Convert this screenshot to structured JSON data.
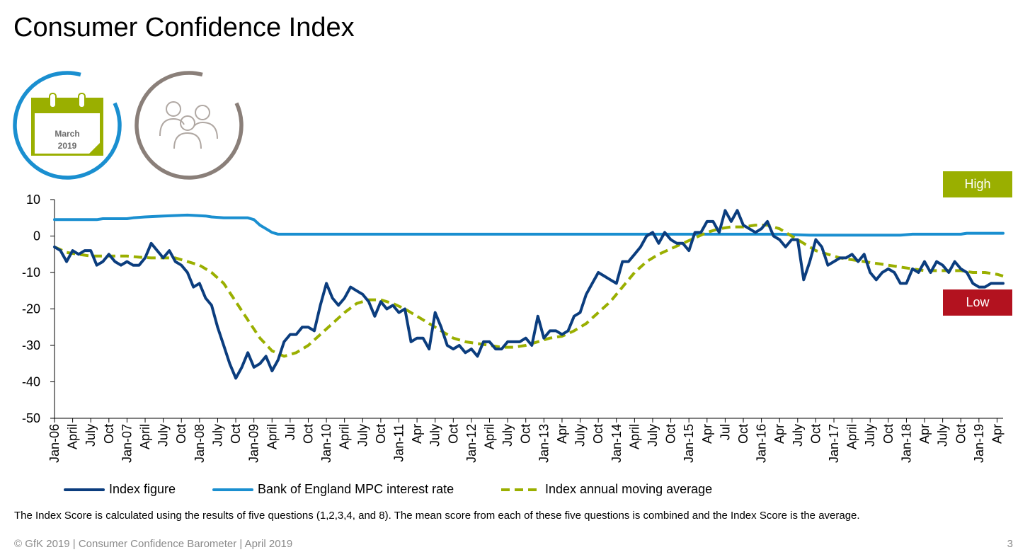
{
  "title": "Consumer Confidence Index",
  "calendar": {
    "month": "March",
    "year": "2019"
  },
  "badges": {
    "high": "High",
    "low": "Low"
  },
  "colors": {
    "index": "#0b3d7e",
    "rate": "#1a8fd0",
    "moving_avg": "#9aaf00",
    "calendar_ring": "#1a8fd0",
    "people_ring": "#8a7f79",
    "high": "#9aaf00",
    "low": "#b3121f"
  },
  "icons": {
    "calendar": "calendar-icon",
    "people": "people-group-icon"
  },
  "note": "The Index Score is calculated using the results of five questions (1,2,3,4, and 8). The mean score from each of these five questions is combined and the Index Score is the average.",
  "footer": "© GfK 2019 | Consumer Confidence Barometer | April 2019",
  "page_number": "3",
  "chart_data": {
    "type": "line",
    "title": "",
    "xlabel": "",
    "ylabel": "",
    "ylim": [
      -50,
      10
    ],
    "yticks": [
      10,
      0,
      -10,
      -20,
      -30,
      -40,
      -50
    ],
    "x_labels": [
      {
        "i": 0,
        "label": "Jan-06"
      },
      {
        "i": 3,
        "label": "April"
      },
      {
        "i": 6,
        "label": "July"
      },
      {
        "i": 9,
        "label": "Oct"
      },
      {
        "i": 12,
        "label": "Jan-07"
      },
      {
        "i": 15,
        "label": "April"
      },
      {
        "i": 18,
        "label": "July"
      },
      {
        "i": 21,
        "label": "Oct"
      },
      {
        "i": 24,
        "label": "Jan-08"
      },
      {
        "i": 27,
        "label": "July"
      },
      {
        "i": 30,
        "label": "Oct"
      },
      {
        "i": 33,
        "label": "Jan-09"
      },
      {
        "i": 36,
        "label": "April"
      },
      {
        "i": 39,
        "label": "Jul"
      },
      {
        "i": 42,
        "label": "Oct"
      },
      {
        "i": 45,
        "label": "Jan-10"
      },
      {
        "i": 48,
        "label": "April"
      },
      {
        "i": 51,
        "label": "July"
      },
      {
        "i": 54,
        "label": "Oct"
      },
      {
        "i": 57,
        "label": "Jan-11"
      },
      {
        "i": 60,
        "label": "Apr"
      },
      {
        "i": 63,
        "label": "July"
      },
      {
        "i": 66,
        "label": "Oct"
      },
      {
        "i": 69,
        "label": "Jan-12"
      },
      {
        "i": 72,
        "label": "April"
      },
      {
        "i": 75,
        "label": "July"
      },
      {
        "i": 78,
        "label": "Oct"
      },
      {
        "i": 81,
        "label": "Jan-13"
      },
      {
        "i": 84,
        "label": "Apr"
      },
      {
        "i": 87,
        "label": "July"
      },
      {
        "i": 90,
        "label": "Oct"
      },
      {
        "i": 93,
        "label": "Jan-14"
      },
      {
        "i": 96,
        "label": "April"
      },
      {
        "i": 99,
        "label": "July"
      },
      {
        "i": 102,
        "label": "Oct"
      },
      {
        "i": 105,
        "label": "Jan-15"
      },
      {
        "i": 108,
        "label": "Apr"
      },
      {
        "i": 111,
        "label": "Jul"
      },
      {
        "i": 114,
        "label": "Oct"
      },
      {
        "i": 117,
        "label": "Jan-16"
      },
      {
        "i": 120,
        "label": "Apr"
      },
      {
        "i": 123,
        "label": "July"
      },
      {
        "i": 126,
        "label": "Oct"
      },
      {
        "i": 129,
        "label": "Jan-17"
      },
      {
        "i": 132,
        "label": "April"
      },
      {
        "i": 135,
        "label": "July"
      },
      {
        "i": 138,
        "label": "Oct"
      },
      {
        "i": 141,
        "label": "Jan-18"
      },
      {
        "i": 144,
        "label": "Apr"
      },
      {
        "i": 147,
        "label": "July"
      },
      {
        "i": 150,
        "label": "Oct"
      },
      {
        "i": 153,
        "label": "Jan-19"
      },
      {
        "i": 156,
        "label": "Apr"
      }
    ],
    "series": [
      {
        "name": "Index figure",
        "style": "solid",
        "points": [
          [
            0,
            -3
          ],
          [
            1,
            -4
          ],
          [
            2,
            -7
          ],
          [
            3,
            -4
          ],
          [
            4,
            -5
          ],
          [
            5,
            -4
          ],
          [
            6,
            -4
          ],
          [
            7,
            -8
          ],
          [
            8,
            -7
          ],
          [
            9,
            -5
          ],
          [
            10,
            -7
          ],
          [
            11,
            -8
          ],
          [
            12,
            -7
          ],
          [
            13,
            -8
          ],
          [
            14,
            -8
          ],
          [
            15,
            -6
          ],
          [
            16,
            -2
          ],
          [
            17,
            -4
          ],
          [
            18,
            -6
          ],
          [
            19,
            -4
          ],
          [
            20,
            -7
          ],
          [
            21,
            -8
          ],
          [
            22,
            -10
          ],
          [
            23,
            -14
          ],
          [
            24,
            -13
          ],
          [
            25,
            -17
          ],
          [
            26,
            -19
          ],
          [
            27,
            -25
          ],
          [
            28,
            -30
          ],
          [
            29,
            -35
          ],
          [
            30,
            -39
          ],
          [
            31,
            -36
          ],
          [
            32,
            -32
          ],
          [
            33,
            -36
          ],
          [
            34,
            -35
          ],
          [
            35,
            -33
          ],
          [
            36,
            -37
          ],
          [
            37,
            -34
          ],
          [
            38,
            -29
          ],
          [
            39,
            -27
          ],
          [
            40,
            -27
          ],
          [
            41,
            -25
          ],
          [
            42,
            -25
          ],
          [
            43,
            -26
          ],
          [
            44,
            -19
          ],
          [
            45,
            -13
          ],
          [
            46,
            -17
          ],
          [
            47,
            -19
          ],
          [
            48,
            -17
          ],
          [
            49,
            -14
          ],
          [
            50,
            -15
          ],
          [
            51,
            -16
          ],
          [
            52,
            -18
          ],
          [
            53,
            -22
          ],
          [
            54,
            -18
          ],
          [
            55,
            -20
          ],
          [
            56,
            -19
          ],
          [
            57,
            -21
          ],
          [
            58,
            -20
          ],
          [
            59,
            -29
          ],
          [
            60,
            -28
          ],
          [
            61,
            -28
          ],
          [
            62,
            -31
          ],
          [
            63,
            -21
          ],
          [
            64,
            -25
          ],
          [
            65,
            -30
          ],
          [
            66,
            -31
          ],
          [
            67,
            -30
          ],
          [
            68,
            -32
          ],
          [
            69,
            -31
          ],
          [
            70,
            -33
          ],
          [
            71,
            -29
          ],
          [
            72,
            -29
          ],
          [
            73,
            -31
          ],
          [
            74,
            -31
          ],
          [
            75,
            -29
          ],
          [
            76,
            -29
          ],
          [
            77,
            -29
          ],
          [
            78,
            -28
          ],
          [
            79,
            -30
          ],
          [
            80,
            -22
          ],
          [
            81,
            -28
          ],
          [
            82,
            -26
          ],
          [
            83,
            -26
          ],
          [
            84,
            -27
          ],
          [
            85,
            -26
          ],
          [
            86,
            -22
          ],
          [
            87,
            -21
          ],
          [
            88,
            -16
          ],
          [
            89,
            -13
          ],
          [
            90,
            -10
          ],
          [
            91,
            -11
          ],
          [
            92,
            -12
          ],
          [
            93,
            -13
          ],
          [
            94,
            -7
          ],
          [
            95,
            -7
          ],
          [
            96,
            -5
          ],
          [
            97,
            -3
          ],
          [
            98,
            0
          ],
          [
            99,
            1
          ],
          [
            100,
            -2
          ],
          [
            101,
            1
          ],
          [
            102,
            -1
          ],
          [
            103,
            -2
          ],
          [
            104,
            -2
          ],
          [
            105,
            -4
          ],
          [
            106,
            1
          ],
          [
            107,
            1
          ],
          [
            108,
            4
          ],
          [
            109,
            4
          ],
          [
            110,
            1
          ],
          [
            111,
            7
          ],
          [
            112,
            4
          ],
          [
            113,
            7
          ],
          [
            114,
            3
          ],
          [
            115,
            2
          ],
          [
            116,
            1
          ],
          [
            117,
            2
          ],
          [
            118,
            4
          ],
          [
            119,
            0
          ],
          [
            120,
            -1
          ],
          [
            121,
            -3
          ],
          [
            122,
            -1
          ],
          [
            123,
            -1
          ],
          [
            124,
            -12
          ],
          [
            125,
            -7
          ],
          [
            126,
            -1
          ],
          [
            127,
            -3
          ],
          [
            128,
            -8
          ],
          [
            129,
            -7
          ],
          [
            130,
            -6
          ],
          [
            131,
            -6
          ],
          [
            132,
            -5
          ],
          [
            133,
            -7
          ],
          [
            134,
            -5
          ],
          [
            135,
            -10
          ],
          [
            136,
            -12
          ],
          [
            137,
            -10
          ],
          [
            138,
            -9
          ],
          [
            139,
            -10
          ],
          [
            140,
            -13
          ],
          [
            141,
            -13
          ],
          [
            142,
            -9
          ],
          [
            143,
            -10
          ],
          [
            144,
            -7
          ],
          [
            145,
            -10
          ],
          [
            146,
            -7
          ],
          [
            147,
            -8
          ],
          [
            148,
            -10
          ],
          [
            149,
            -7
          ],
          [
            150,
            -9
          ],
          [
            151,
            -10
          ],
          [
            152,
            -13
          ],
          [
            153,
            -14
          ],
          [
            154,
            -14
          ],
          [
            155,
            -13
          ],
          [
            156,
            -13
          ],
          [
            157,
            -13
          ]
        ]
      },
      {
        "name": "Bank of England MPC interest rate",
        "style": "solid",
        "points": [
          [
            0,
            4.5
          ],
          [
            7,
            4.5
          ],
          [
            8,
            4.75
          ],
          [
            12,
            4.75
          ],
          [
            13,
            5.0
          ],
          [
            15,
            5.25
          ],
          [
            18,
            5.5
          ],
          [
            22,
            5.75
          ],
          [
            25,
            5.5
          ],
          [
            26,
            5.25
          ],
          [
            28,
            5.0
          ],
          [
            31,
            5.0
          ],
          [
            32,
            5.0
          ],
          [
            33,
            4.5
          ],
          [
            34,
            3.0
          ],
          [
            35,
            2.0
          ],
          [
            36,
            1.0
          ],
          [
            37,
            0.5
          ],
          [
            38,
            0.5
          ],
          [
            120,
            0.5
          ],
          [
            125,
            0.25
          ],
          [
            140,
            0.25
          ],
          [
            142,
            0.5
          ],
          [
            150,
            0.5
          ],
          [
            151,
            0.75
          ],
          [
            157,
            0.75
          ]
        ]
      },
      {
        "name": "Index annual moving average",
        "style": "dashed",
        "points": [
          [
            0,
            -3
          ],
          [
            2,
            -4.5
          ],
          [
            4,
            -5
          ],
          [
            6,
            -5.5
          ],
          [
            8,
            -5.5
          ],
          [
            10,
            -5.5
          ],
          [
            12,
            -5.5
          ],
          [
            14,
            -5.8
          ],
          [
            16,
            -6
          ],
          [
            18,
            -6
          ],
          [
            20,
            -6
          ],
          [
            22,
            -7
          ],
          [
            24,
            -8
          ],
          [
            26,
            -10
          ],
          [
            28,
            -13
          ],
          [
            30,
            -18
          ],
          [
            32,
            -23
          ],
          [
            34,
            -28
          ],
          [
            36,
            -31.5
          ],
          [
            38,
            -33
          ],
          [
            40,
            -32
          ],
          [
            42,
            -30
          ],
          [
            44,
            -27
          ],
          [
            46,
            -24
          ],
          [
            48,
            -21
          ],
          [
            50,
            -18.5
          ],
          [
            52,
            -17.5
          ],
          [
            54,
            -17.5
          ],
          [
            56,
            -18.5
          ],
          [
            58,
            -20
          ],
          [
            60,
            -22
          ],
          [
            62,
            -24
          ],
          [
            64,
            -26
          ],
          [
            66,
            -28
          ],
          [
            68,
            -29
          ],
          [
            70,
            -29.5
          ],
          [
            72,
            -30
          ],
          [
            74,
            -30.5
          ],
          [
            76,
            -30.5
          ],
          [
            78,
            -30
          ],
          [
            80,
            -29
          ],
          [
            82,
            -28
          ],
          [
            84,
            -27.5
          ],
          [
            86,
            -26
          ],
          [
            88,
            -24
          ],
          [
            90,
            -21
          ],
          [
            92,
            -18
          ],
          [
            94,
            -14
          ],
          [
            96,
            -10
          ],
          [
            98,
            -7
          ],
          [
            100,
            -5
          ],
          [
            102,
            -3.5
          ],
          [
            104,
            -2
          ],
          [
            106,
            -0.5
          ],
          [
            108,
            1
          ],
          [
            110,
            2
          ],
          [
            112,
            2.5
          ],
          [
            114,
            2.5
          ],
          [
            116,
            3
          ],
          [
            118,
            3
          ],
          [
            120,
            2
          ],
          [
            122,
            0
          ],
          [
            124,
            -2
          ],
          [
            126,
            -4
          ],
          [
            128,
            -5
          ],
          [
            130,
            -6
          ],
          [
            132,
            -6.5
          ],
          [
            134,
            -7
          ],
          [
            136,
            -7.5
          ],
          [
            138,
            -8
          ],
          [
            140,
            -8.5
          ],
          [
            142,
            -9
          ],
          [
            144,
            -9.5
          ],
          [
            146,
            -9.5
          ],
          [
            148,
            -9.5
          ],
          [
            150,
            -9.5
          ],
          [
            152,
            -10
          ],
          [
            154,
            -10
          ],
          [
            156,
            -10.5
          ],
          [
            157,
            -11
          ]
        ]
      }
    ]
  }
}
